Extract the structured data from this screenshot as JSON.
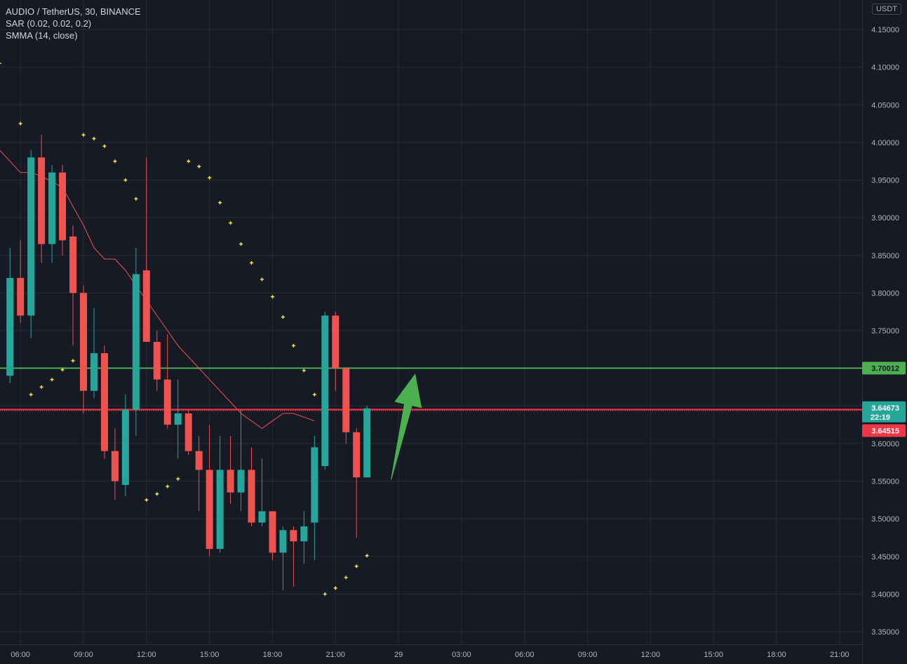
{
  "legend": {
    "line1": "AUDIO / TetherUS, 30, BINANCE",
    "line2": "SAR (0.02, 0.02, 0.2)",
    "line3": "SMMA (14, close)"
  },
  "currency_label": "USDT",
  "colors": {
    "background": "#161a25",
    "grid": "#262a35",
    "up": "#26a69a",
    "down": "#ef5350",
    "sar": "#ffeb3b",
    "smma": "#ef5350",
    "green_level": "#4caf50",
    "red_level": "#f23645",
    "arrow": "#4caf50"
  },
  "chart_data": {
    "type": "candlestick",
    "symbol": "AUDIO / TetherUS",
    "timeframe": "30",
    "exchange": "BINANCE",
    "ylim": [
      3.33,
      4.18
    ],
    "y_ticks": [
      {
        "value": 4.15,
        "label": "4.15000"
      },
      {
        "value": 4.1,
        "label": "4.10000"
      },
      {
        "value": 4.05,
        "label": "4.05000"
      },
      {
        "value": 4.0,
        "label": "4.00000"
      },
      {
        "value": 3.95,
        "label": "3.95000"
      },
      {
        "value": 3.9,
        "label": "3.90000"
      },
      {
        "value": 3.85,
        "label": "3.85000"
      },
      {
        "value": 3.8,
        "label": "3.80000"
      },
      {
        "value": 3.75,
        "label": "3.75000"
      },
      {
        "value": 3.7,
        "label": "3.70000"
      },
      {
        "value": 3.6,
        "label": "3.60000"
      },
      {
        "value": 3.55,
        "label": "3.55000"
      },
      {
        "value": 3.5,
        "label": "3.50000"
      },
      {
        "value": 3.45,
        "label": "3.45000"
      },
      {
        "value": 3.4,
        "label": "3.40000"
      },
      {
        "value": 3.35,
        "label": "3.35000"
      }
    ],
    "x_ticks": [
      {
        "index": 1,
        "label": "06:00"
      },
      {
        "index": 7,
        "label": "09:00"
      },
      {
        "index": 13,
        "label": "12:00"
      },
      {
        "index": 19,
        "label": "15:00"
      },
      {
        "index": 25,
        "label": "18:00"
      },
      {
        "index": 31,
        "label": "21:00"
      },
      {
        "index": 37,
        "label": "29"
      },
      {
        "index": 43,
        "label": "03:00"
      },
      {
        "index": 49,
        "label": "06:00"
      },
      {
        "index": 55,
        "label": "09:00"
      },
      {
        "index": 61,
        "label": "12:00"
      },
      {
        "index": 67,
        "label": "15:00"
      },
      {
        "index": 73,
        "label": "18:00"
      },
      {
        "index": 79,
        "label": "21:00"
      }
    ],
    "candles": [
      {
        "o": 3.69,
        "h": 3.86,
        "l": 3.68,
        "c": 3.82
      },
      {
        "o": 3.82,
        "h": 3.87,
        "l": 3.76,
        "c": 3.77
      },
      {
        "o": 3.77,
        "h": 3.99,
        "l": 3.74,
        "c": 3.98
      },
      {
        "o": 3.98,
        "h": 4.01,
        "l": 3.84,
        "c": 3.865
      },
      {
        "o": 3.865,
        "h": 3.97,
        "l": 3.84,
        "c": 3.96
      },
      {
        "o": 3.96,
        "h": 3.97,
        "l": 3.85,
        "c": 3.87
      },
      {
        "o": 3.875,
        "h": 3.89,
        "l": 3.73,
        "c": 3.8
      },
      {
        "o": 3.8,
        "h": 3.81,
        "l": 3.64,
        "c": 3.67
      },
      {
        "o": 3.67,
        "h": 3.78,
        "l": 3.66,
        "c": 3.72
      },
      {
        "o": 3.72,
        "h": 3.73,
        "l": 3.58,
        "c": 3.59
      },
      {
        "o": 3.59,
        "h": 3.62,
        "l": 3.525,
        "c": 3.55
      },
      {
        "o": 3.545,
        "h": 3.665,
        "l": 3.53,
        "c": 3.645
      },
      {
        "o": 3.645,
        "h": 3.86,
        "l": 3.61,
        "c": 3.825
      },
      {
        "o": 3.83,
        "h": 3.98,
        "l": 3.74,
        "c": 3.735
      },
      {
        "o": 3.735,
        "h": 3.75,
        "l": 3.67,
        "c": 3.685
      },
      {
        "o": 3.685,
        "h": 3.745,
        "l": 3.62,
        "c": 3.625
      },
      {
        "o": 3.625,
        "h": 3.685,
        "l": 3.58,
        "c": 3.64
      },
      {
        "o": 3.64,
        "h": 3.645,
        "l": 3.585,
        "c": 3.59
      },
      {
        "o": 3.59,
        "h": 3.61,
        "l": 3.51,
        "c": 3.565
      },
      {
        "o": 3.565,
        "h": 3.625,
        "l": 3.45,
        "c": 3.46
      },
      {
        "o": 3.46,
        "h": 3.61,
        "l": 3.455,
        "c": 3.565
      },
      {
        "o": 3.565,
        "h": 3.61,
        "l": 3.52,
        "c": 3.535
      },
      {
        "o": 3.535,
        "h": 3.645,
        "l": 3.51,
        "c": 3.565
      },
      {
        "o": 3.565,
        "h": 3.595,
        "l": 3.49,
        "c": 3.495
      },
      {
        "o": 3.495,
        "h": 3.58,
        "l": 3.49,
        "c": 3.51
      },
      {
        "o": 3.51,
        "h": 3.51,
        "l": 3.445,
        "c": 3.455
      },
      {
        "o": 3.455,
        "h": 3.49,
        "l": 3.405,
        "c": 3.485
      },
      {
        "o": 3.485,
        "h": 3.49,
        "l": 3.41,
        "c": 3.47
      },
      {
        "o": 3.47,
        "h": 3.51,
        "l": 3.44,
        "c": 3.49
      },
      {
        "o": 3.495,
        "h": 3.61,
        "l": 3.445,
        "c": 3.595
      },
      {
        "o": 3.57,
        "h": 3.775,
        "l": 3.565,
        "c": 3.77
      },
      {
        "o": 3.77,
        "h": 3.775,
        "l": 3.67,
        "c": 3.7
      },
      {
        "o": 3.7,
        "h": 3.7,
        "l": 3.6,
        "c": 3.615
      },
      {
        "o": 3.615,
        "h": 3.62,
        "l": 3.475,
        "c": 3.555
      },
      {
        "o": 3.555,
        "h": 3.65,
        "l": 3.555,
        "c": 3.6467
      }
    ],
    "sar": [
      {
        "index": -1,
        "value": 4.105
      },
      {
        "index": 1,
        "value": 4.025
      },
      {
        "index": 2,
        "value": 3.665
      },
      {
        "index": 3,
        "value": 3.675
      },
      {
        "index": 4,
        "value": 3.685
      },
      {
        "index": 5,
        "value": 3.698
      },
      {
        "index": 6,
        "value": 3.71
      },
      {
        "index": 7,
        "value": 4.01
      },
      {
        "index": 8,
        "value": 4.005
      },
      {
        "index": 9,
        "value": 3.995
      },
      {
        "index": 10,
        "value": 3.975
      },
      {
        "index": 11,
        "value": 3.95
      },
      {
        "index": 12,
        "value": 3.925
      },
      {
        "index": 13,
        "value": 3.525
      },
      {
        "index": 14,
        "value": 3.533
      },
      {
        "index": 15,
        "value": 3.543
      },
      {
        "index": 16,
        "value": 3.553
      },
      {
        "index": 17,
        "value": 3.975
      },
      {
        "index": 18,
        "value": 3.968
      },
      {
        "index": 19,
        "value": 3.953
      },
      {
        "index": 20,
        "value": 3.92
      },
      {
        "index": 21,
        "value": 3.893
      },
      {
        "index": 22,
        "value": 3.865
      },
      {
        "index": 23,
        "value": 3.84
      },
      {
        "index": 24,
        "value": 3.818
      },
      {
        "index": 25,
        "value": 3.795
      },
      {
        "index": 26,
        "value": 3.768
      },
      {
        "index": 27,
        "value": 3.73
      },
      {
        "index": 28,
        "value": 3.697
      },
      {
        "index": 29,
        "value": 3.665
      },
      {
        "index": 30,
        "value": 3.4
      },
      {
        "index": 31,
        "value": 3.408
      },
      {
        "index": 32,
        "value": 3.422
      },
      {
        "index": 33,
        "value": 3.437
      },
      {
        "index": 34,
        "value": 3.451
      }
    ],
    "smma": [
      {
        "index": -1,
        "value": 3.99
      },
      {
        "index": 0,
        "value": 3.975
      },
      {
        "index": 1,
        "value": 3.96
      },
      {
        "index": 2,
        "value": 3.96
      },
      {
        "index": 3,
        "value": 3.955
      },
      {
        "index": 4,
        "value": 3.948
      },
      {
        "index": 5,
        "value": 3.94
      },
      {
        "index": 6,
        "value": 3.915
      },
      {
        "index": 7,
        "value": 3.89
      },
      {
        "index": 8,
        "value": 3.86
      },
      {
        "index": 9,
        "value": 3.845
      },
      {
        "index": 10,
        "value": 3.845
      },
      {
        "index": 11,
        "value": 3.83
      },
      {
        "index": 12,
        "value": 3.81
      },
      {
        "index": 13,
        "value": 3.79
      },
      {
        "index": 14,
        "value": 3.77
      },
      {
        "index": 15,
        "value": 3.75
      },
      {
        "index": 16,
        "value": 3.73
      },
      {
        "index": 17,
        "value": 3.715
      },
      {
        "index": 18,
        "value": 3.7
      },
      {
        "index": 19,
        "value": 3.685
      },
      {
        "index": 20,
        "value": 3.67
      },
      {
        "index": 21,
        "value": 3.655
      },
      {
        "index": 22,
        "value": 3.64
      },
      {
        "index": 23,
        "value": 3.63
      },
      {
        "index": 24,
        "value": 3.62
      },
      {
        "index": 25,
        "value": 3.63
      },
      {
        "index": 26,
        "value": 3.64
      },
      {
        "index": 27,
        "value": 3.64
      },
      {
        "index": 28,
        "value": 3.635
      },
      {
        "index": 29,
        "value": 3.63
      }
    ],
    "levels": [
      {
        "name": "green-level",
        "value": 3.70012,
        "label": "3.70012"
      },
      {
        "name": "red-level",
        "value": 3.64515,
        "label": "3.64515"
      }
    ],
    "last_price": {
      "value": 3.64673,
      "label": "3.64673",
      "countdown": "22:19"
    },
    "arrow": {
      "from_index": 36.3,
      "from_value": 3.552,
      "to_index": 38.6,
      "to_value": 3.693
    }
  }
}
